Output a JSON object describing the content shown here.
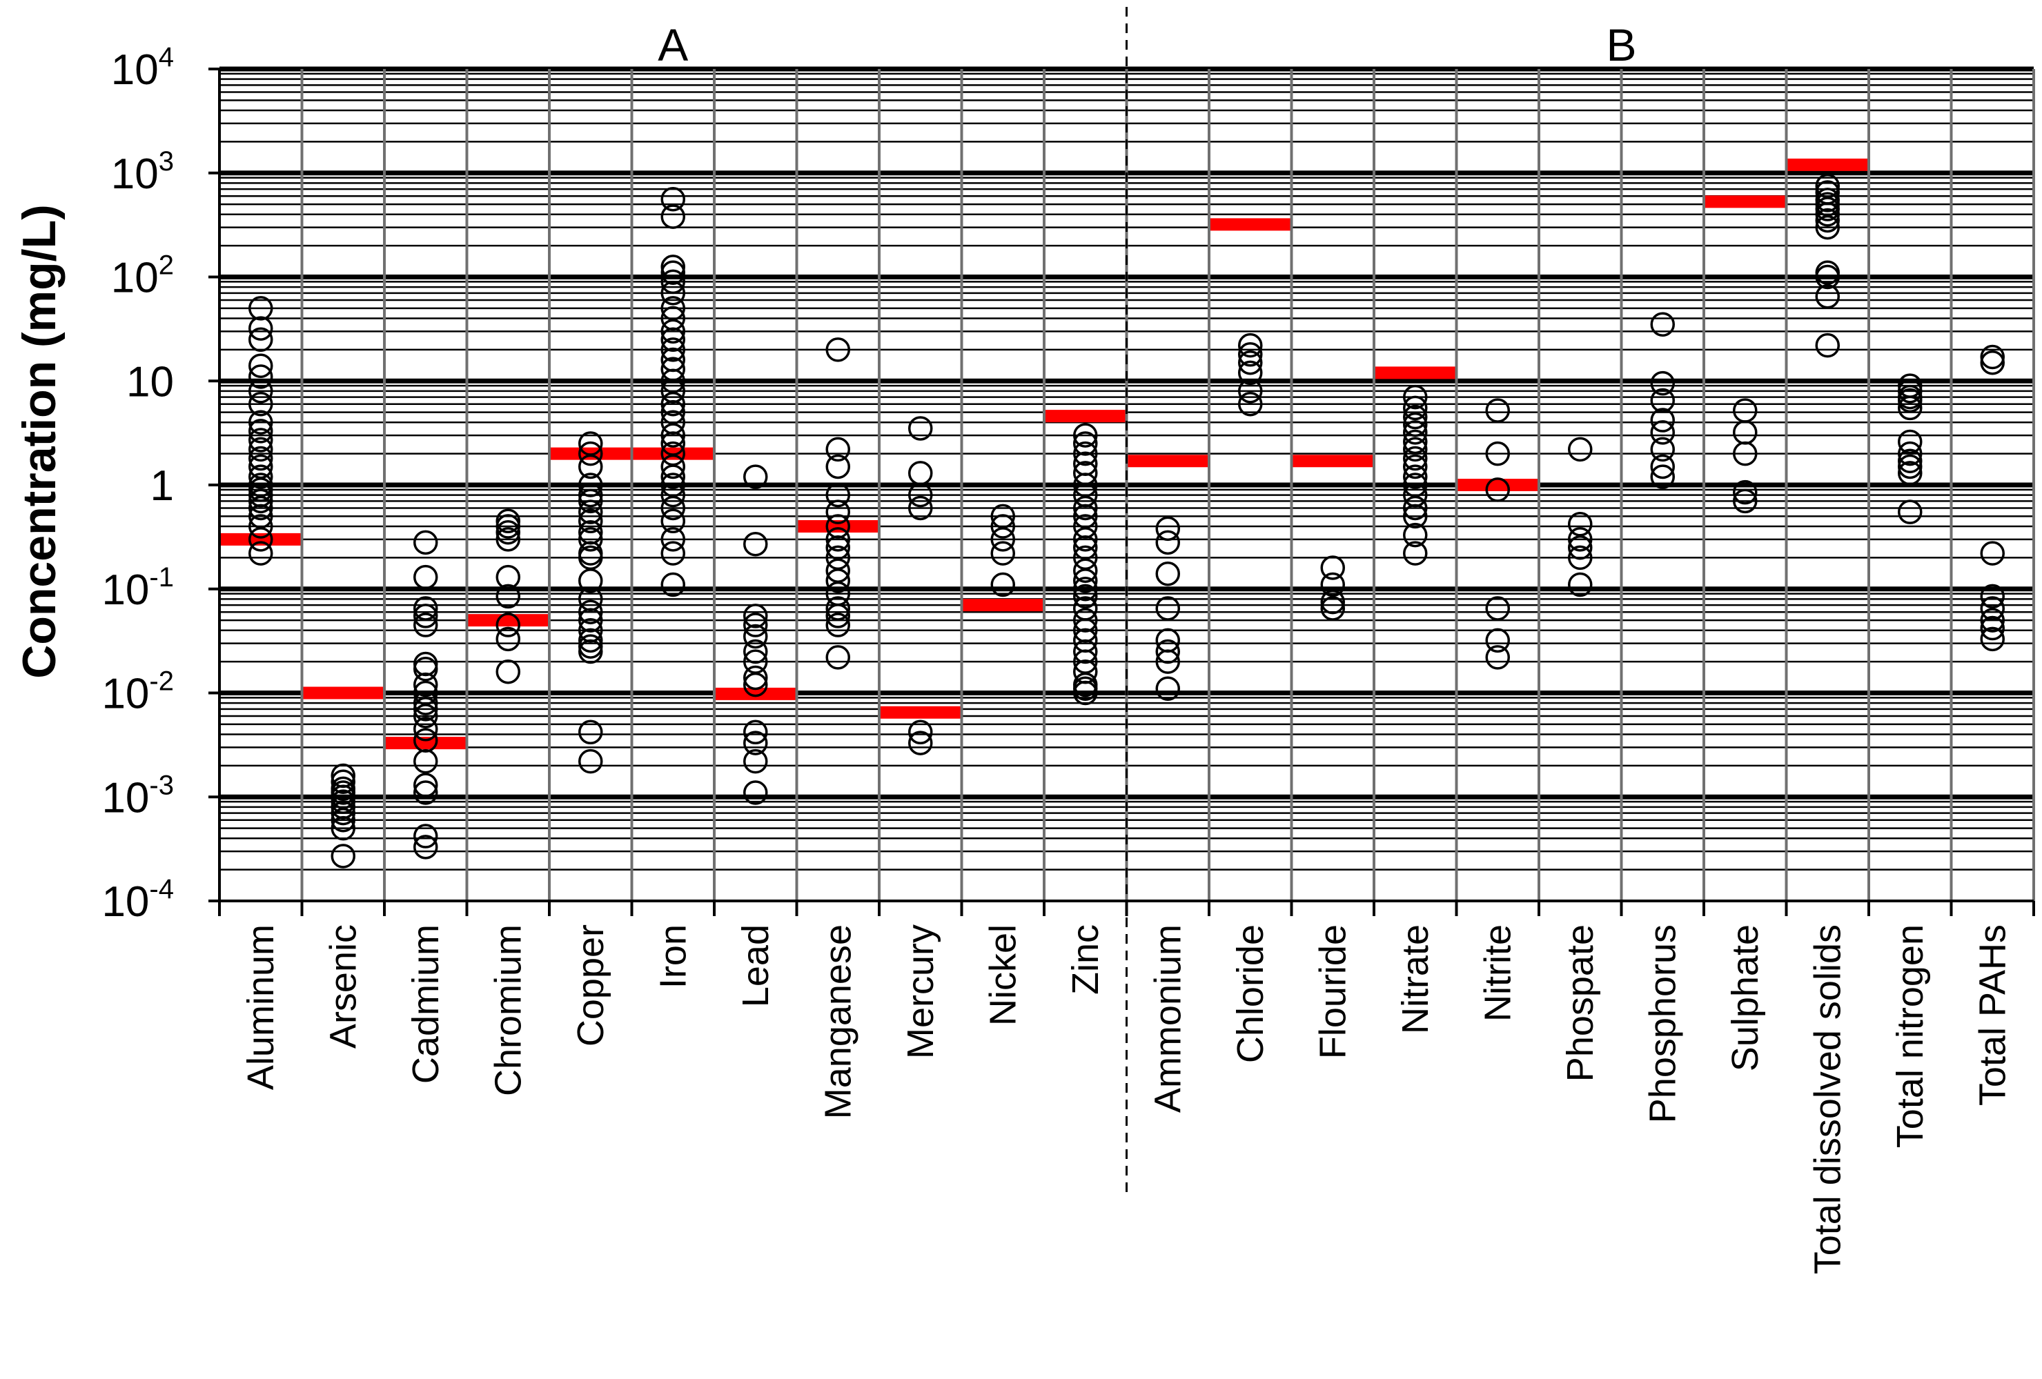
{
  "chart_data": {
    "type": "scatter",
    "title": "",
    "xlabel": "",
    "ylabel": "Concentration (mg/L)",
    "yscale": "log",
    "ylim": [
      0.0001,
      10000
    ],
    "y_ticks": [
      {
        "base": "10",
        "exp": "-4",
        "value": 0.0001
      },
      {
        "base": "10",
        "exp": "-3",
        "value": 0.001
      },
      {
        "base": "10",
        "exp": "-2",
        "value": 0.01
      },
      {
        "base": "10",
        "exp": "-1",
        "value": 0.1
      },
      {
        "base": "1",
        "exp": "",
        "value": 1
      },
      {
        "base": "10",
        "exp": "",
        "value": 10
      },
      {
        "base": "10",
        "exp": "2",
        "value": 100
      },
      {
        "base": "10",
        "exp": "3",
        "value": 1000
      },
      {
        "base": "10",
        "exp": "4",
        "value": 10000
      }
    ],
    "groups": [
      {
        "label": "A",
        "first_index": 0,
        "last_index": 10
      },
      {
        "label": "B",
        "first_index": 11,
        "last_index": 22
      }
    ],
    "threshold_color": "#ff0000",
    "marker_color": "#000000",
    "categories": [
      {
        "name": "Aluminum",
        "threshold": 0.3,
        "values": [
          0.22,
          0.3,
          0.4,
          0.5,
          0.6,
          0.7,
          0.8,
          0.9,
          1.0,
          1.2,
          1.5,
          1.8,
          2.2,
          2.7,
          3.3,
          4.0,
          6.0,
          8.0,
          11,
          14,
          25,
          32,
          50
        ]
      },
      {
        "name": "Arsenic",
        "threshold": 0.01,
        "values": [
          0.00027,
          0.0005,
          0.0006,
          0.0007,
          0.0008,
          0.0009,
          0.001,
          0.0011,
          0.0012,
          0.0014,
          0.0016
        ]
      },
      {
        "name": "Cadmium",
        "threshold": 0.0033,
        "values": [
          0.00033,
          0.00042,
          0.0011,
          0.0013,
          0.0022,
          0.0035,
          0.0045,
          0.006,
          0.007,
          0.008,
          0.01,
          0.012,
          0.017,
          0.019,
          0.045,
          0.055,
          0.065,
          0.13,
          0.28
        ]
      },
      {
        "name": "Chromium",
        "threshold": 0.05,
        "values": [
          0.016,
          0.033,
          0.045,
          0.085,
          0.13,
          0.3,
          0.35,
          0.4,
          0.45
        ]
      },
      {
        "name": "Copper",
        "threshold": 2.0,
        "values": [
          0.0022,
          0.0042,
          0.025,
          0.028,
          0.032,
          0.04,
          0.05,
          0.06,
          0.08,
          0.12,
          0.2,
          0.22,
          0.3,
          0.35,
          0.45,
          0.55,
          0.7,
          0.8,
          1.0,
          1.5,
          2.0,
          2.5
        ]
      },
      {
        "name": "Iron",
        "threshold": 2.0,
        "values": [
          0.11,
          0.22,
          0.3,
          0.45,
          0.6,
          0.8,
          1.0,
          1.2,
          1.5,
          2.0,
          2.5,
          3.0,
          4.0,
          5.0,
          6.0,
          8.0,
          10,
          13,
          16,
          20,
          25,
          30,
          40,
          50,
          70,
          90,
          110,
          125,
          380,
          560
        ]
      },
      {
        "name": "Lead",
        "threshold": 0.0098,
        "values": [
          0.0011,
          0.0022,
          0.0033,
          0.0042,
          0.012,
          0.014,
          0.02,
          0.025,
          0.035,
          0.045,
          0.055,
          0.27,
          1.2
        ]
      },
      {
        "name": "Manganese",
        "threshold": 0.4,
        "values": [
          0.022,
          0.045,
          0.055,
          0.065,
          0.09,
          0.12,
          0.15,
          0.2,
          0.25,
          0.3,
          0.4,
          0.55,
          0.8,
          1.5,
          2.2,
          20
        ]
      },
      {
        "name": "Mercury",
        "threshold": 0.0065,
        "values": [
          0.0033,
          0.0042,
          0.6,
          0.8,
          1.3,
          3.5
        ]
      },
      {
        "name": "Nickel",
        "threshold": 0.07,
        "values": [
          0.11,
          0.22,
          0.3,
          0.4,
          0.5
        ]
      },
      {
        "name": "Zinc",
        "threshold": 4.6,
        "values": [
          0.01,
          0.011,
          0.012,
          0.016,
          0.02,
          0.025,
          0.032,
          0.04,
          0.05,
          0.065,
          0.085,
          0.1,
          0.12,
          0.15,
          0.2,
          0.25,
          0.3,
          0.4,
          0.5,
          0.6,
          0.8,
          1.0,
          1.3,
          1.6,
          2.0,
          2.5,
          3.0
        ]
      },
      {
        "name": "Ammonium",
        "threshold": 1.7,
        "values": [
          0.011,
          0.02,
          0.025,
          0.032,
          0.065,
          0.14,
          0.28,
          0.38
        ]
      },
      {
        "name": "Chloride",
        "threshold": 320,
        "values": [
          6.0,
          8.0,
          12,
          15,
          18,
          22
        ]
      },
      {
        "name": "Flouride",
        "threshold": 1.7,
        "values": [
          0.065,
          0.075,
          0.11,
          0.16
        ]
      },
      {
        "name": "Nitrate",
        "threshold": 12,
        "values": [
          0.22,
          0.33,
          0.5,
          0.6,
          0.8,
          1.0,
          1.2,
          1.5,
          1.8,
          2.2,
          2.6,
          3.2,
          3.8,
          4.5,
          5.5,
          7.0
        ]
      },
      {
        "name": "Nitrite",
        "threshold": 1.0,
        "values": [
          0.022,
          0.032,
          0.065,
          0.9,
          2.0,
          5.2
        ]
      },
      {
        "name": "Phospate",
        "threshold": null,
        "values": [
          0.11,
          0.2,
          0.25,
          0.3,
          0.42,
          2.2
        ]
      },
      {
        "name": "Phosphorus",
        "threshold": null,
        "values": [
          1.2,
          1.5,
          2.2,
          3.2,
          4.2,
          6.5,
          9.5,
          35
        ]
      },
      {
        "name": "Sulphate",
        "threshold": 530,
        "values": [
          0.7,
          0.85,
          2.0,
          3.2,
          5.2
        ]
      },
      {
        "name": "Total dissolved solids",
        "threshold": 1200,
        "values": [
          22,
          65,
          100,
          110,
          300,
          350,
          400,
          450,
          500,
          550,
          650,
          750
        ]
      },
      {
        "name": "Total nitrogen",
        "threshold": null,
        "values": [
          0.55,
          1.3,
          1.5,
          1.7,
          2.0,
          2.6,
          5.5,
          6.5,
          7.0,
          8.0,
          9.0
        ]
      },
      {
        "name": "Total PAHs",
        "threshold": null,
        "values": [
          0.033,
          0.042,
          0.05,
          0.065,
          0.085,
          0.22,
          15,
          17
        ]
      }
    ]
  }
}
